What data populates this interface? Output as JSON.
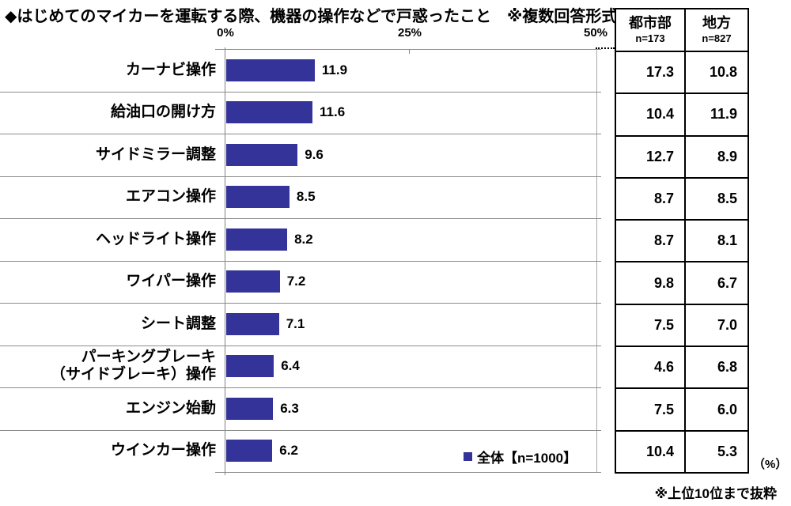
{
  "title": "◆はじめてのマイカーを運転する際、機器の操作などで戸惑ったこと　※複数回答形式",
  "colors": {
    "bar": "#333399",
    "grid": "#8c8c8c",
    "axis": "#808080",
    "table_border": "#000000"
  },
  "chart_data": {
    "type": "bar",
    "orientation": "horizontal",
    "title": "はじめてのマイカーを運転する際、機器の操作などで戸惑ったこと（複数回答形式）",
    "xlim": [
      0,
      50
    ],
    "x_ticks": [
      "0%",
      "25%",
      "50%"
    ],
    "grid": "horizontal row separators, no vertical gridlines",
    "legend_position": "bottom-right inside plot",
    "categories": [
      "カーナビ操作",
      "給油口の開け方",
      "サイドミラー調整",
      "エアコン操作",
      "ヘッドライト操作",
      "ワイパー操作",
      "シート調整",
      "パーキングブレーキ\n（サイドブレーキ）操作",
      "エンジン始動",
      "ウインカー操作"
    ],
    "series": [
      {
        "name": "全体【n=1000】",
        "values": [
          "11.9",
          "11.6",
          "9.6",
          "8.5",
          "8.2",
          "7.2",
          "7.1",
          "6.4",
          "6.3",
          "6.2"
        ]
      },
      {
        "name": "都市部",
        "n_label": "n=173",
        "values": [
          "17.3",
          "10.4",
          "12.7",
          "8.7",
          "8.7",
          "9.8",
          "7.5",
          "4.6",
          "7.5",
          "10.4"
        ]
      },
      {
        "name": "地方",
        "n_label": "n=827",
        "values": [
          "10.8",
          "11.9",
          "8.9",
          "8.5",
          "8.1",
          "6.7",
          "7.0",
          "6.8",
          "6.0",
          "5.3"
        ]
      }
    ],
    "unit_label": "（%）",
    "footnote": "※上位10位まで抜粋"
  }
}
